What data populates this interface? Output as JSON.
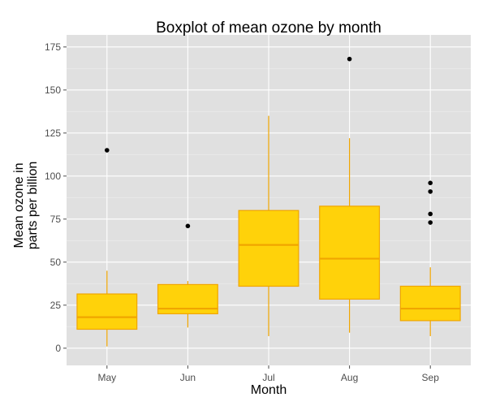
{
  "chart_data": {
    "type": "boxplot",
    "title": "Boxplot of mean ozone by month",
    "xlabel": "Month",
    "ylabel": [
      "Mean ozone in",
      "parts per billion"
    ],
    "categories": [
      "May",
      "Jun",
      "Jul",
      "Aug",
      "Sep"
    ],
    "ylim": [
      -10,
      182
    ],
    "yticks": [
      0,
      25,
      50,
      75,
      100,
      125,
      150,
      175
    ],
    "grid": true,
    "boxes": [
      {
        "category": "May",
        "whisker_low": 1,
        "q1": 11,
        "median": 18,
        "q3": 31.5,
        "whisker_high": 45,
        "outliers": [
          115
        ]
      },
      {
        "category": "Jun",
        "whisker_low": 12,
        "q1": 20,
        "median": 23,
        "q3": 37,
        "whisker_high": 39,
        "outliers": [
          71
        ]
      },
      {
        "category": "Jul",
        "whisker_low": 7,
        "q1": 36,
        "median": 60,
        "q3": 80,
        "whisker_high": 135,
        "outliers": []
      },
      {
        "category": "Aug",
        "whisker_low": 9,
        "q1": 28.5,
        "median": 52,
        "q3": 82.5,
        "whisker_high": 122,
        "outliers": [
          168
        ]
      },
      {
        "category": "Sep",
        "whisker_low": 7,
        "q1": 16,
        "median": 23,
        "q3": 36,
        "whisker_high": 47,
        "outliers": [
          73,
          78,
          91,
          96
        ]
      }
    ],
    "colors": {
      "panel_bg": "#e0e0e0",
      "grid_major": "#ffffff",
      "grid_minor": "#ececec",
      "box_fill": "#ffd20a",
      "box_stroke": "#f0a500",
      "outlier": "#000000"
    }
  }
}
